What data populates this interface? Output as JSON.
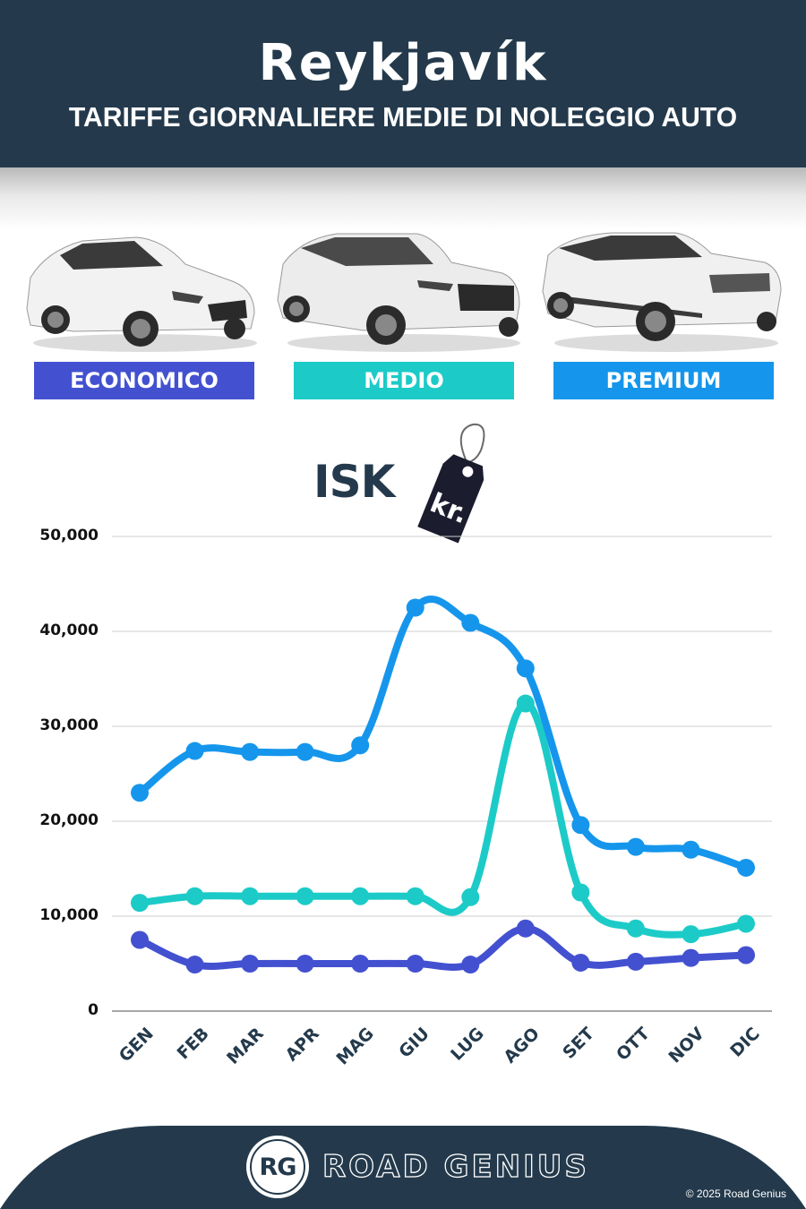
{
  "header": {
    "title": "Reykjavík",
    "subtitle": "TARIFFE GIORNALIERE MEDIE DI NOLEGGIO AUTO"
  },
  "categories": [
    {
      "label": "ECONOMICO",
      "color": "#4351d0",
      "car": "hatchback"
    },
    {
      "label": "MEDIO",
      "color": "#1ccbc7",
      "car": "compact-suv"
    },
    {
      "label": "PREMIUM",
      "color": "#1596ec",
      "car": "luxury-suv"
    }
  ],
  "currency": {
    "label": "ISK",
    "tag_text": "kr.",
    "tag_color": "#1b1c2e"
  },
  "chart_data": {
    "type": "line",
    "title": "Reykjavík - Tariffe giornaliere medie di noleggio auto",
    "xlabel": "",
    "ylabel": "ISK",
    "categories": [
      "GEN",
      "FEB",
      "MAR",
      "APR",
      "MAG",
      "GIU",
      "LUG",
      "AGO",
      "SET",
      "OTT",
      "NOV",
      "DIC"
    ],
    "y_ticks": [
      0,
      10000,
      20000,
      30000,
      40000,
      50000
    ],
    "y_tick_labels": [
      "0",
      "10,000",
      "20,000",
      "30,000",
      "40,000",
      "50,000"
    ],
    "ylim": [
      0,
      50000
    ],
    "grid": true,
    "legend": "badges above chart (ECONOMICO, MEDIO, PREMIUM)",
    "series": [
      {
        "name": "ECONOMICO",
        "color": "#4351d0",
        "values": [
          7500,
          4900,
          5000,
          5000,
          5000,
          5000,
          4900,
          8700,
          5100,
          5200,
          5600,
          5900
        ]
      },
      {
        "name": "MEDIO",
        "color": "#1ccbc7",
        "values": [
          11400,
          12100,
          12100,
          12100,
          12100,
          12100,
          12000,
          32400,
          12500,
          8700,
          8100,
          9200
        ]
      },
      {
        "name": "PREMIUM",
        "color": "#1596ec",
        "values": [
          23000,
          27400,
          27300,
          27300,
          28000,
          42500,
          40900,
          36100,
          19600,
          17300,
          17000,
          15100
        ]
      }
    ]
  },
  "footer": {
    "logo_initials": "RG",
    "brand": "ROAD GENIUS",
    "copyright": "© 2025 Road Genius",
    "background": "#243a4c"
  }
}
